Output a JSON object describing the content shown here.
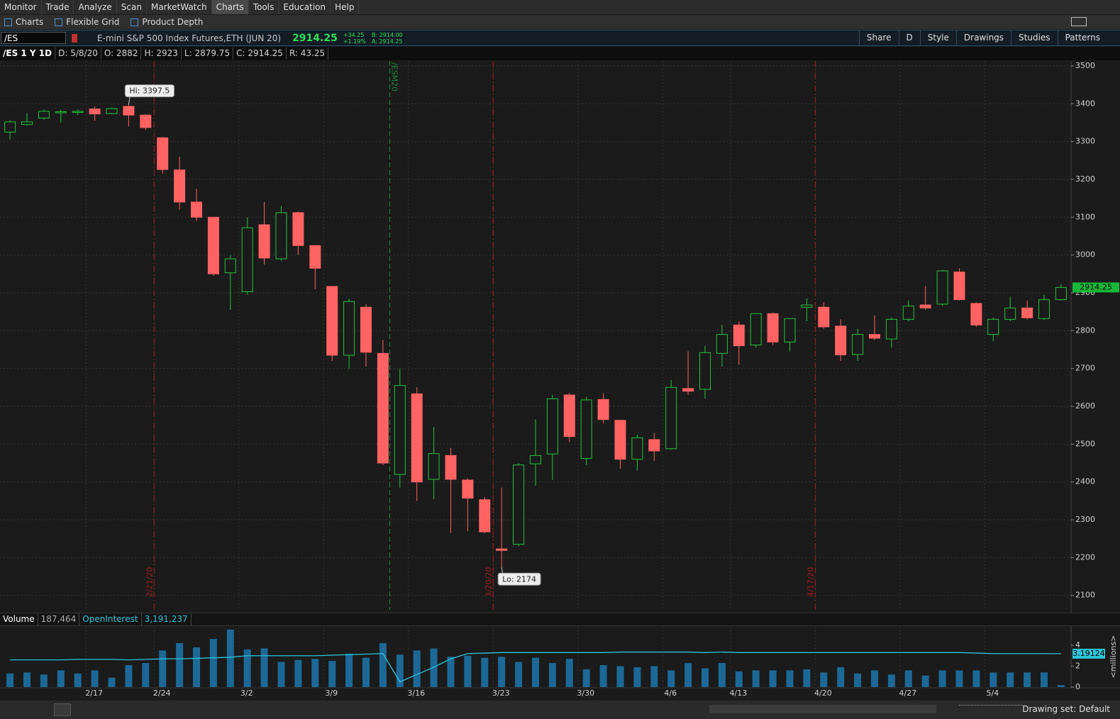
{
  "menu": [
    "Monitor",
    "Trade",
    "Analyze",
    "Scan",
    "MarketWatch",
    "Charts",
    "Tools",
    "Education",
    "Help"
  ],
  "tabs": [
    "Charts",
    "Flexible Grid",
    "Product Depth"
  ],
  "symbol_bar": {
    "symbol": "/ES",
    "description": "E-mini S&P 500 Index Futures,ETH (JUN 20)",
    "last": "2914.25",
    "change": "+34.25",
    "change_pct": "+1.19%",
    "bid": "B: 2914.00",
    "ask": "A: 2914.25",
    "buttons": [
      "Share",
      "D",
      "Style",
      "Drawings",
      "Studies",
      "Patterns"
    ]
  },
  "info_bar": [
    "/ES 1 Y 1D",
    "D: 5/8/20",
    "O: 2882",
    "H: 2923",
    "L: 2879.75",
    "C: 2914.25",
    "R: 43.25"
  ],
  "chart_data": [
    {
      "type": "candlestick",
      "up_color": "#22c43e",
      "down_color": "#ff6262",
      "grid": true,
      "open": [
        3325,
        3345,
        3362,
        3376,
        3377,
        3386,
        3374,
        3393,
        3370,
        3310,
        3225,
        3140,
        3100,
        2953,
        2903,
        3080,
        2990,
        3112,
        3025,
        2917,
        2735,
        2862,
        2740,
        2420,
        2633,
        2407,
        2470,
        2405,
        2353,
        2223,
        2235,
        2448,
        2474,
        2630,
        2462,
        2618,
        2563,
        2460,
        2512,
        2488,
        2647,
        2645,
        2740,
        2815,
        2762,
        2845,
        2770,
        2862,
        2862,
        2812,
        2737,
        2790,
        2778,
        2830,
        2868,
        2870,
        2955,
        2872,
        2790,
        2830,
        2860,
        2832,
        2882
      ],
      "high": [
        3357,
        3375,
        3385,
        3384,
        3385,
        3393,
        3390,
        3397.5,
        3372,
        3312,
        3260,
        3175,
        3100,
        3000,
        3100,
        3140,
        3130,
        3115,
        3025,
        2917,
        2885,
        2870,
        2775,
        2700,
        2650,
        2545,
        2490,
        2410,
        2360,
        2385,
        2450,
        2565,
        2630,
        2635,
        2625,
        2635,
        2563,
        2525,
        2530,
        2670,
        2745,
        2760,
        2815,
        2825,
        2845,
        2848,
        2832,
        2885,
        2875,
        2830,
        2805,
        2840,
        2835,
        2880,
        2918,
        2960,
        2965,
        2875,
        2835,
        2890,
        2880,
        2895,
        2923
      ],
      "low": [
        3305,
        3342,
        3358,
        3350,
        3370,
        3355,
        3372,
        3340,
        3330,
        3215,
        3120,
        3090,
        2945,
        2855,
        2895,
        2975,
        2985,
        3000,
        2910,
        2720,
        2700,
        2705,
        2445,
        2385,
        2350,
        2355,
        2265,
        2270,
        2265,
        2174,
        2230,
        2390,
        2405,
        2505,
        2445,
        2555,
        2435,
        2430,
        2455,
        2485,
        2630,
        2620,
        2705,
        2710,
        2755,
        2762,
        2745,
        2825,
        2805,
        2720,
        2720,
        2775,
        2755,
        2825,
        2855,
        2865,
        2880,
        2810,
        2772,
        2825,
        2830,
        2828,
        2879.75
      ],
      "close": [
        3352,
        3352,
        3380,
        3379,
        3380,
        3373,
        3387,
        3370,
        3337,
        3226,
        3140,
        3100,
        2950,
        2990,
        3072,
        2992,
        3112,
        3025,
        2965,
        2735,
        2877,
        2743,
        2450,
        2655,
        2400,
        2475,
        2407,
        2357,
        2268,
        2219,
        2445,
        2470,
        2620,
        2520,
        2617,
        2565,
        2460,
        2517,
        2482,
        2650,
        2640,
        2742,
        2790,
        2760,
        2845,
        2770,
        2832,
        2868,
        2810,
        2736,
        2790,
        2780,
        2830,
        2865,
        2860,
        2958,
        2882,
        2815,
        2830,
        2860,
        2834,
        2882,
        2914.25
      ],
      "xlim": [
        -0.59,
        62.59
      ],
      "ylim": [
        2062,
        3513
      ],
      "yticks": [
        2100,
        2200,
        2300,
        2400,
        2500,
        2600,
        2700,
        2800,
        2900,
        3000,
        3100,
        3200,
        3300,
        3400,
        3500
      ],
      "xticks": [
        {
          "value": 4.5,
          "label": "2/17"
        },
        {
          "value": 8.5,
          "label": "2/24"
        },
        {
          "value": 13.5,
          "label": "3/2"
        },
        {
          "value": 18.5,
          "label": "3/9"
        },
        {
          "value": 23.5,
          "label": "3/16"
        },
        {
          "value": 28.5,
          "label": "3/23"
        },
        {
          "value": 33.5,
          "label": "3/30"
        },
        {
          "value": 38.5,
          "label": "4/6"
        },
        {
          "value": 42.5,
          "label": "4/13"
        },
        {
          "value": 47.5,
          "label": "4/20"
        },
        {
          "value": 52.5,
          "label": "4/27"
        },
        {
          "value": 57.5,
          "label": "5/4"
        }
      ],
      "hi_label": "Hi: 3397.5",
      "lo_label": "Lo: 2174",
      "events": [
        {
          "label": "2/21/20",
          "color": "#a11c1c"
        },
        {
          "label": "/ESM20",
          "color": "#1c8a3a"
        },
        {
          "label": "3/20/20",
          "color": "#a11c1c"
        },
        {
          "label": "4/17/20",
          "color": "#a11c1c"
        }
      ]
    },
    {
      "type": "bar",
      "ylim": [
        0,
        5.76
      ],
      "yticks": [
        0,
        2,
        4
      ],
      "ylabel": "<millions>",
      "readouts": [
        "187,464",
        "3,191,237"
      ],
      "series": [
        {
          "name": "Volume",
          "color": "#1c6896",
          "values": [
            1.3,
            1.4,
            1.2,
            1.6,
            1.3,
            1.6,
            0.9,
            2.1,
            2.3,
            3.5,
            4.2,
            3.8,
            4.6,
            5.5,
            3.6,
            3.7,
            2.4,
            2.6,
            2.7,
            2.5,
            3.2,
            2.8,
            4.2,
            3.1,
            3.5,
            3.7,
            2.9,
            3.0,
            2.8,
            2.9,
            2.4,
            2.8,
            2.3,
            2.7,
            1.7,
            2.1,
            2.0,
            1.9,
            2.0,
            1.6,
            2.3,
            1.8,
            2.3,
            1.5,
            1.6,
            1.6,
            1.6,
            1.7,
            1.4,
            1.9,
            1.3,
            1.6,
            1.2,
            1.6,
            1.1,
            1.6,
            1.6,
            1.6,
            1.4,
            1.4,
            1.4,
            1.4,
            0.187464
          ]
        },
        {
          "name": "OpenInterest",
          "color": "#2bc6d8",
          "type": "line",
          "values": [
            2.6,
            2.6,
            2.6,
            2.6,
            2.65,
            2.65,
            2.65,
            2.6,
            2.65,
            2.7,
            2.7,
            2.75,
            2.8,
            2.85,
            3.0,
            3.0,
            3.0,
            3.0,
            3.0,
            3.05,
            3.1,
            3.15,
            3.2,
            0.5,
            1.2,
            1.9,
            2.7,
            3.2,
            3.25,
            3.3,
            3.3,
            3.3,
            3.3,
            3.3,
            3.3,
            3.3,
            3.35,
            3.35,
            3.35,
            3.35,
            3.35,
            3.3,
            3.35,
            3.3,
            3.3,
            3.3,
            3.3,
            3.3,
            3.3,
            3.3,
            3.3,
            3.3,
            3.3,
            3.3,
            3.3,
            3.3,
            3.3,
            3.25,
            3.2,
            3.2,
            3.2,
            3.2,
            3.19124
          ]
        }
      ]
    }
  ],
  "footer": {
    "drawing_set": "Drawing set: Default"
  }
}
